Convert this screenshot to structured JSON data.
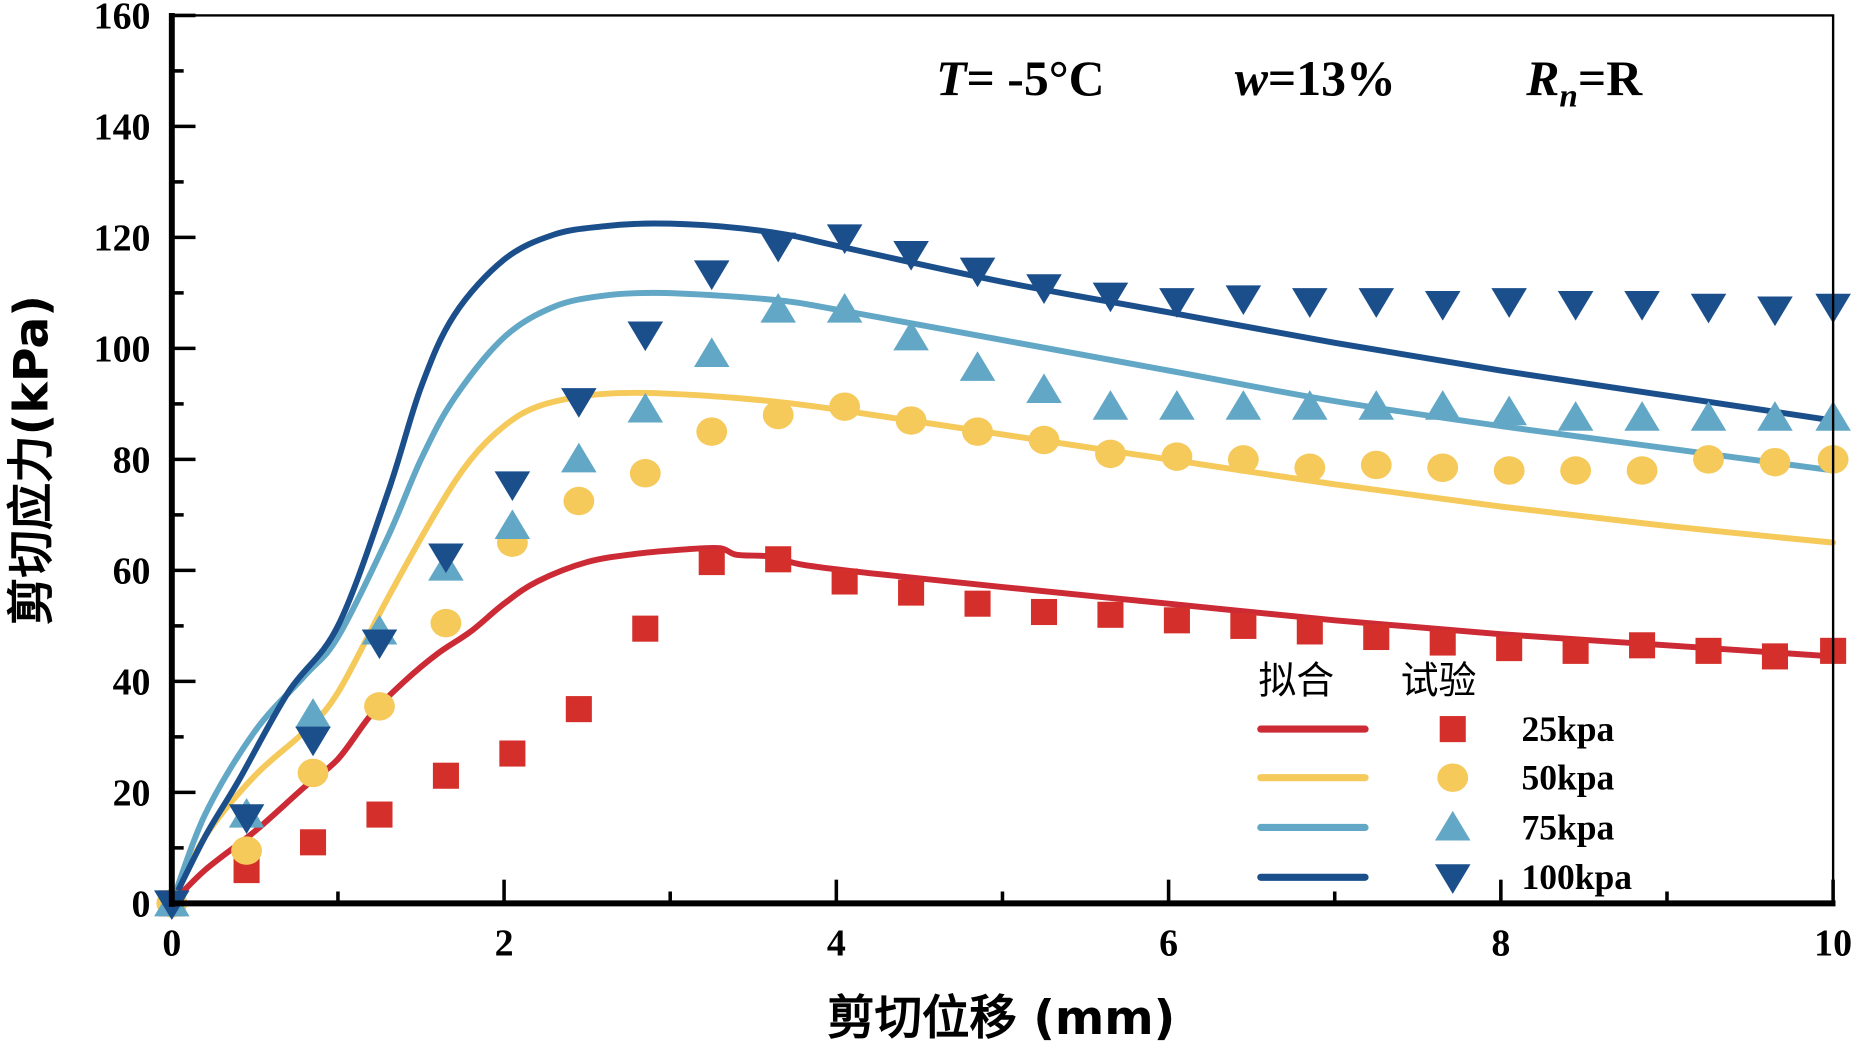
{
  "chart_data": {
    "type": "scatter",
    "title": "",
    "xlabel": "剪切位移 (mm)",
    "ylabel": "剪切应力(kPa)",
    "xlim": [
      0,
      10
    ],
    "ylim": [
      0,
      160
    ],
    "xticks": [
      0,
      2,
      4,
      6,
      8,
      10
    ],
    "xtick_labels": [
      "0",
      "2",
      "4",
      "6",
      "8",
      "10"
    ],
    "yticks": [
      0,
      20,
      40,
      60,
      80,
      100,
      120,
      140,
      160
    ],
    "ytick_labels": [
      "0",
      "20",
      "40",
      "60",
      "80",
      "100",
      "120",
      "140",
      "160"
    ],
    "grid": false,
    "annotations": {
      "temperature": {
        "var": "T",
        "text": "= -5°C"
      },
      "moisture": {
        "var": "w",
        "text": "=13%"
      },
      "roughness": {
        "var": "R",
        "sub": "n",
        "text": "=R"
      }
    },
    "legend": {
      "placement": "bottom-right",
      "header_fit": "拟合",
      "header_test": "试验",
      "entries": [
        "25kpa",
        "50kpa",
        "75kpa",
        "100kpa"
      ]
    },
    "x": [
      0,
      0.45,
      0.85,
      1.25,
      1.65,
      2.05,
      2.45,
      2.85,
      3.25,
      3.65,
      4.05,
      4.45,
      4.85,
      5.25,
      5.65,
      6.05,
      6.45,
      6.85,
      7.25,
      7.65,
      8.05,
      8.45,
      8.85,
      9.25,
      9.65,
      10.0
    ],
    "series": [
      {
        "name": "25kpa",
        "color": "#d42f2a",
        "line_color": "#cc2a34",
        "marker": "square",
        "test_values": [
          0,
          6,
          11,
          16,
          23,
          27,
          35,
          49.5,
          61.5,
          62,
          58,
          56,
          54,
          52.5,
          52,
          51,
          50,
          49,
          48,
          47,
          46,
          45.5,
          46.5,
          45.5,
          44.5,
          45.5
        ],
        "fit_x": [
          0,
          0.2,
          0.5,
          0.8,
          1.0,
          1.2,
          1.4,
          1.6,
          1.8,
          2.0,
          2.2,
          2.5,
          2.8,
          3.1,
          3.3,
          3.4,
          3.6,
          3.8,
          4.2,
          5.0,
          6.0,
          7.0,
          8.0,
          9.0,
          10.0
        ],
        "fit_values": [
          0,
          6,
          13,
          21,
          26,
          34,
          40,
          45,
          49,
          54,
          58,
          61.5,
          63,
          63.8,
          64,
          62.8,
          62.5,
          61,
          59.5,
          57,
          54,
          51,
          48.5,
          46.5,
          44.5
        ]
      },
      {
        "name": "50kpa",
        "color": "#f5c95a",
        "line_color": "#f5c95a",
        "marker": "circle",
        "test_values": [
          0,
          9.5,
          23.5,
          35.5,
          50.5,
          65,
          72.5,
          77.5,
          85,
          88,
          89.5,
          87,
          85,
          83.5,
          81,
          80.5,
          80,
          78.5,
          79,
          78.5,
          78,
          78,
          78,
          80,
          79.5,
          80
        ],
        "fit_x": [
          0,
          0.2,
          0.5,
          0.8,
          1.0,
          1.3,
          1.6,
          1.8,
          2.0,
          2.2,
          2.5,
          2.8,
          3.2,
          3.6,
          4.0,
          5.0,
          6.0,
          7.0,
          8.0,
          9.0,
          10.0
        ],
        "fit_values": [
          0,
          12,
          23,
          31,
          38,
          55,
          71,
          80,
          86,
          89.5,
          91.5,
          92,
          91.5,
          90.5,
          89,
          84.5,
          80,
          75.5,
          71.5,
          68,
          65
        ]
      },
      {
        "name": "75kpa",
        "color": "#62a8c6",
        "line_color": "#62a8c6",
        "marker": "triangle-up",
        "test_values": [
          0,
          16,
          34,
          49,
          60.5,
          68,
          80,
          89,
          99,
          107,
          107,
          102,
          96.5,
          92.5,
          89.5,
          89.5,
          89.5,
          89.5,
          89.5,
          89.5,
          88.5,
          87.5,
          87.5,
          87.5,
          87.5,
          87.5
        ],
        "fit_x": [
          0,
          0.2,
          0.5,
          0.8,
          1.0,
          1.3,
          1.5,
          1.7,
          2.0,
          2.3,
          2.6,
          2.9,
          3.3,
          3.7,
          4.0,
          5.0,
          6.0,
          7.0,
          8.0,
          9.0,
          10.0
        ],
        "fit_values": [
          0,
          16,
          31,
          41,
          48,
          66,
          80,
          91,
          102,
          107.5,
          109.5,
          110,
          109.5,
          108.5,
          107,
          101.5,
          96,
          90.5,
          86,
          82,
          78
        ]
      },
      {
        "name": "100kpa",
        "color": "#1b4f8c",
        "line_color": "#1b4f8c",
        "marker": "triangle-down",
        "test_values": [
          0,
          15.5,
          29.5,
          47,
          62.5,
          75.5,
          90.5,
          102.5,
          113.5,
          118.5,
          120,
          117,
          114,
          111,
          109.5,
          108.5,
          109,
          108.5,
          108.5,
          108,
          108.5,
          108,
          108,
          107.5,
          107,
          107.5
        ],
        "fit_x": [
          0,
          0.2,
          0.4,
          0.7,
          1.0,
          1.3,
          1.5,
          1.7,
          2.0,
          2.3,
          2.6,
          2.9,
          3.3,
          3.7,
          4.0,
          5.0,
          6.0,
          7.0,
          8.0,
          9.0,
          10.0
        ],
        "fit_values": [
          0,
          12,
          22,
          38,
          50,
          74,
          93,
          106,
          116,
          120.5,
          122,
          122.5,
          122,
          120.5,
          118.5,
          112,
          106.5,
          101,
          96,
          91.5,
          87
        ]
      }
    ]
  }
}
